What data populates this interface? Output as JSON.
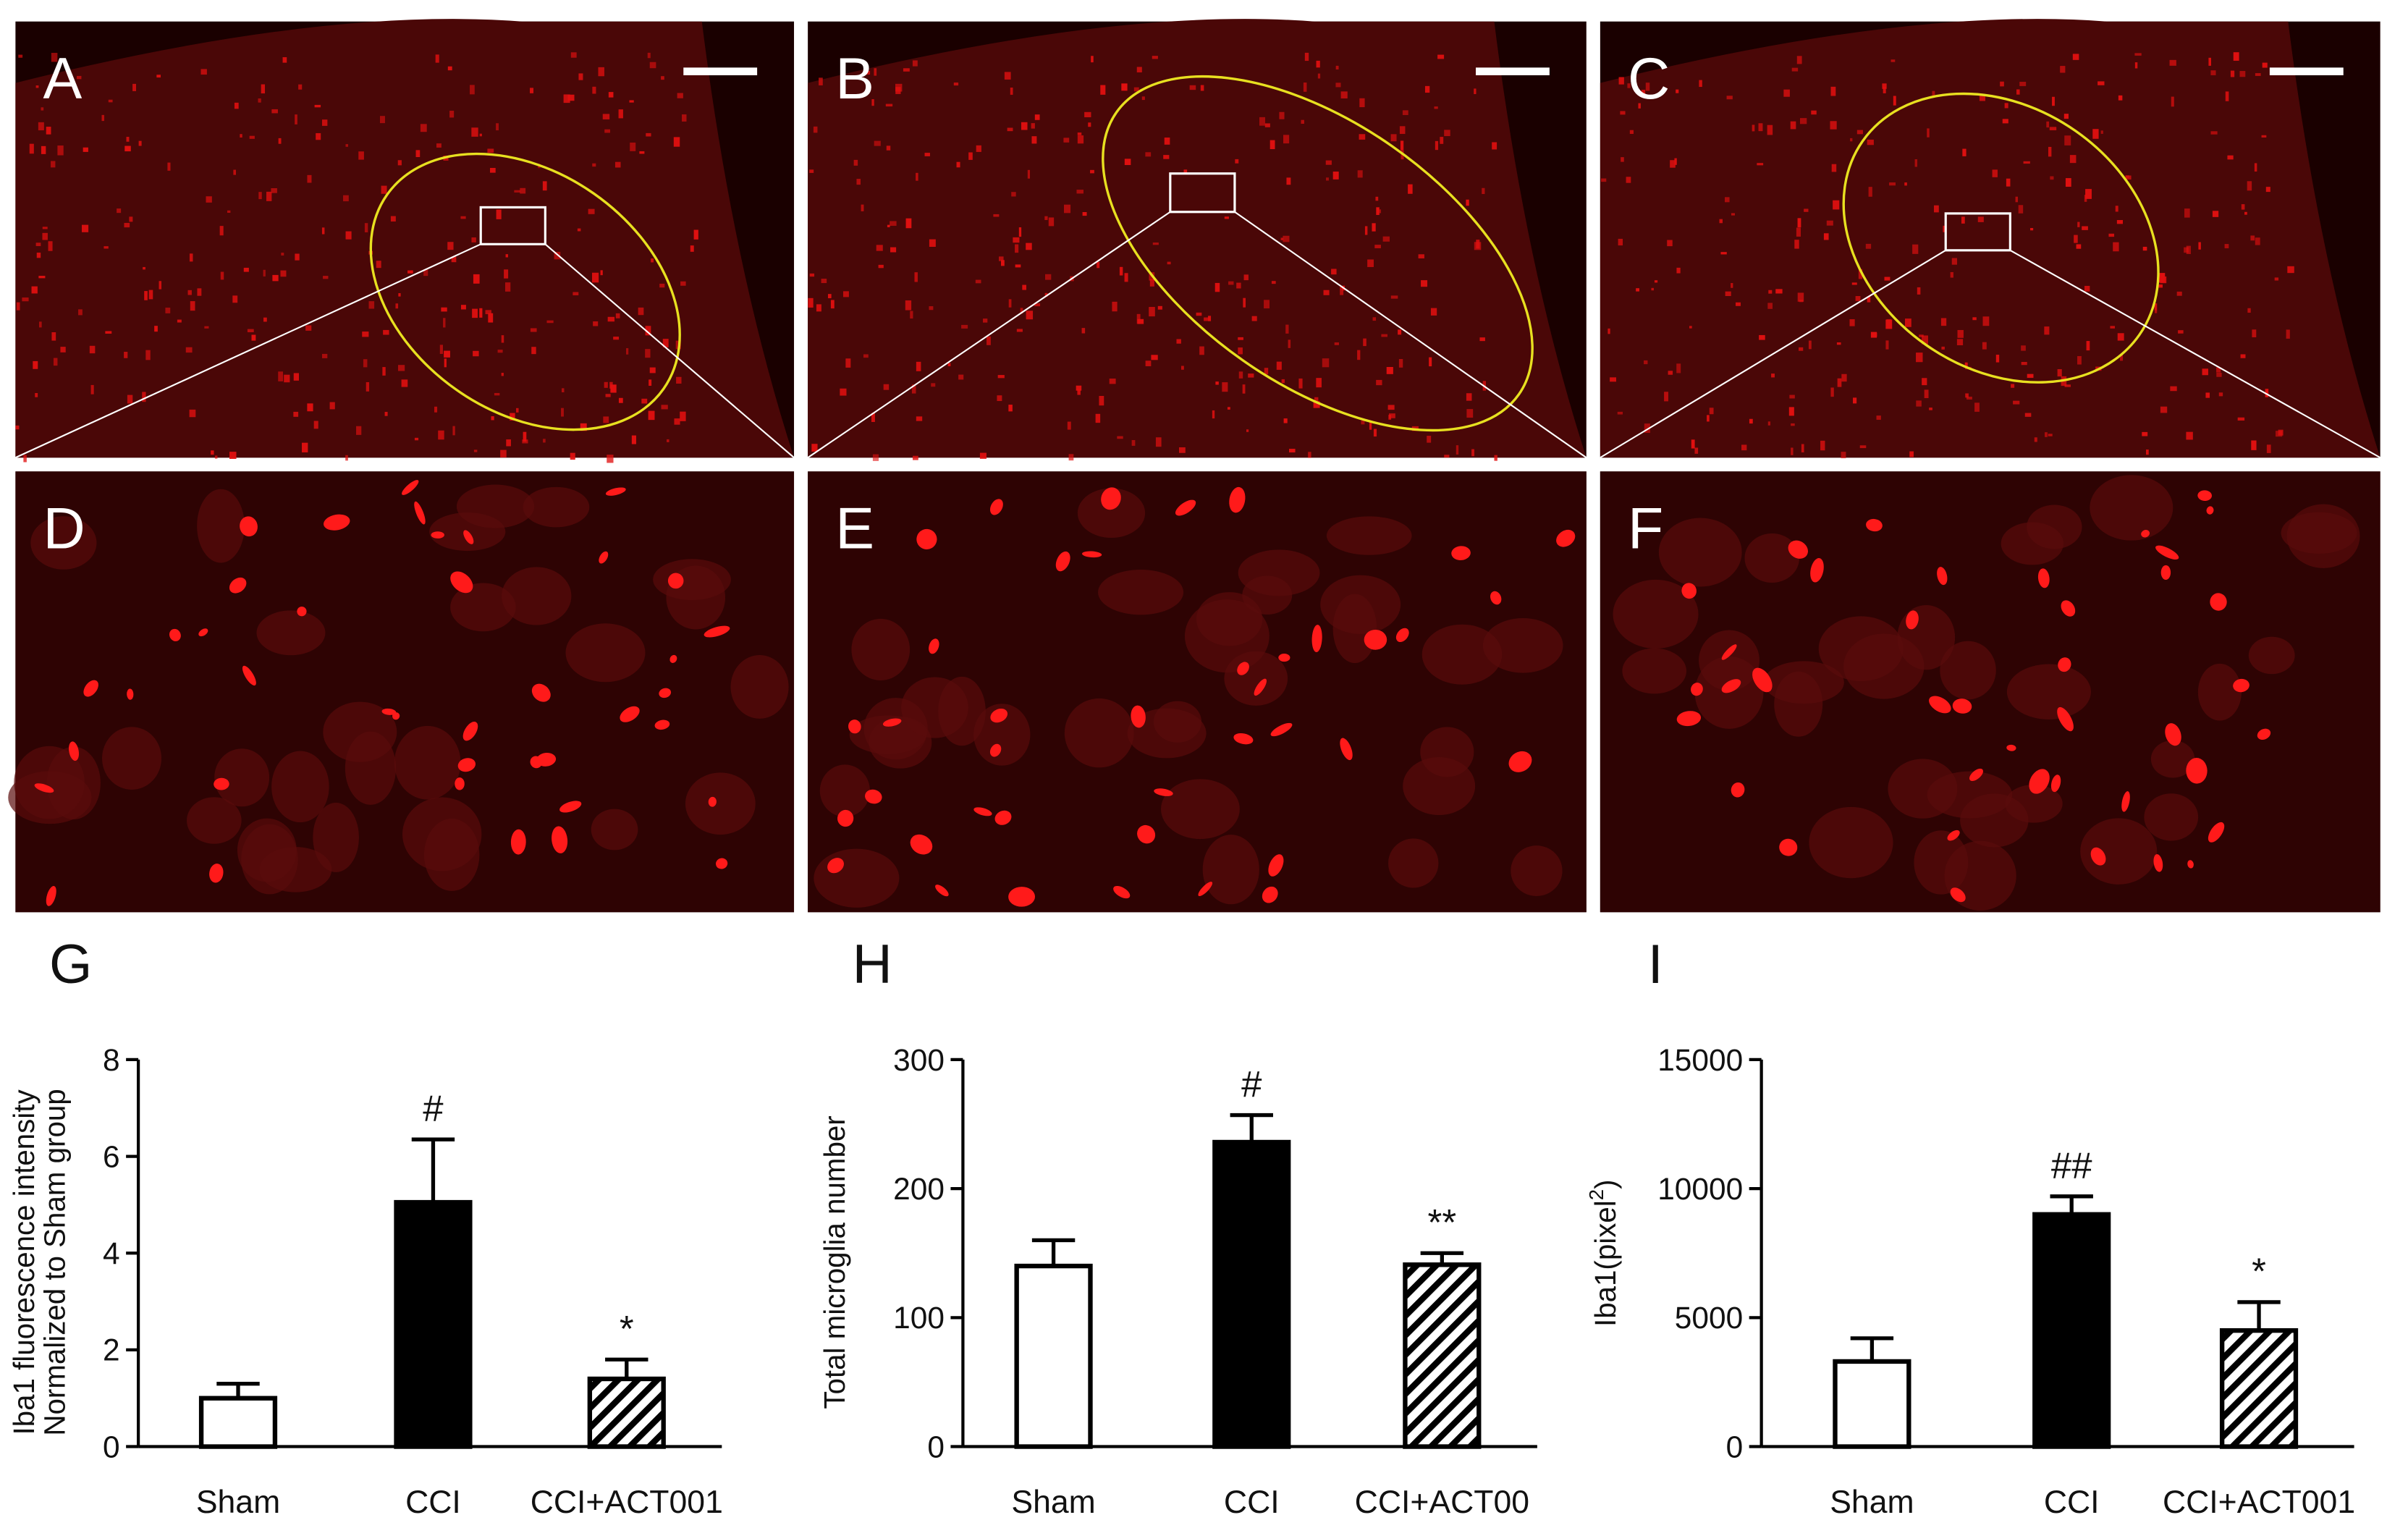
{
  "micrographs": [
    {
      "label": "A"
    },
    {
      "label": "B"
    },
    {
      "label": "C"
    },
    {
      "label": "D"
    },
    {
      "label": "E"
    },
    {
      "label": "F"
    }
  ],
  "chart_data": [
    {
      "type": "bar",
      "panel": "G",
      "ylabel": [
        "Iba1 fluorescence intensity",
        "Normalized to Sham group"
      ],
      "categories": [
        "Sham",
        "CCI",
        "CCI+ACT001"
      ],
      "values": [
        1.0,
        5.05,
        1.4
      ],
      "errors": [
        0.3,
        1.3,
        0.4
      ],
      "annotations": [
        null,
        "#",
        "*"
      ],
      "fills": [
        "white",
        "black",
        "hatch"
      ],
      "ylim": [
        0,
        8
      ],
      "yticks": [
        0,
        2,
        4,
        6,
        8
      ]
    },
    {
      "type": "bar",
      "panel": "H",
      "ylabel": [
        "Total microglia number"
      ],
      "categories": [
        "Sham",
        "CCI",
        "CCI+ACT00"
      ],
      "values": [
        140,
        236,
        141
      ],
      "errors": [
        20,
        21,
        9
      ],
      "annotations": [
        null,
        "#",
        "**"
      ],
      "fills": [
        "white",
        "black",
        "hatch"
      ],
      "ylim": [
        0,
        300
      ],
      "yticks": [
        0,
        100,
        200,
        300
      ]
    },
    {
      "type": "bar",
      "panel": "I",
      "ylabel": [
        "Iba1(pixel",
        "2",
        ")"
      ],
      "categories": [
        "Sham",
        "CCI",
        "CCI+ACT001"
      ],
      "values": [
        3300,
        9000,
        4500
      ],
      "errors": [
        900,
        700,
        1100
      ],
      "annotations": [
        null,
        "##",
        "*"
      ],
      "fills": [
        "white",
        "black",
        "hatch"
      ],
      "ylim": [
        0,
        15000
      ],
      "yticks": [
        0,
        5000,
        10000,
        15000
      ]
    }
  ]
}
